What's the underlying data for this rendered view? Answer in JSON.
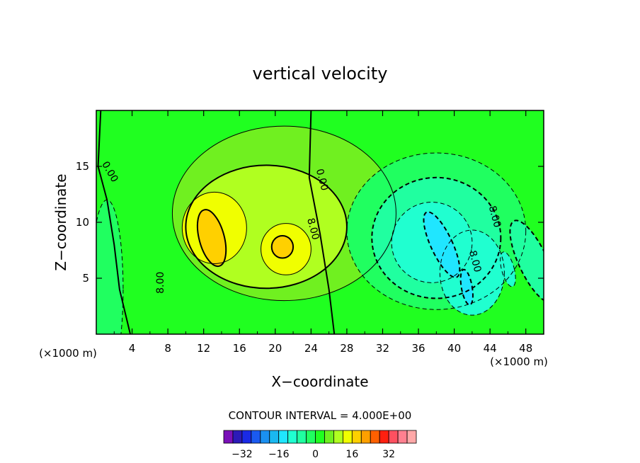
{
  "chart_data": {
    "type": "heatmap",
    "subtype": "filled contour",
    "title": "vertical velocity",
    "xlabel": "X−coordinate",
    "ylabel": "Z−coordinate",
    "x_unit_label": "(×1000 m)",
    "z_unit_label": "(×1000 m)",
    "xlim": [
      0,
      50
    ],
    "ylim": [
      0,
      20
    ],
    "x_ticks": [
      "4",
      "8",
      "12",
      "16",
      "20",
      "24",
      "28",
      "32",
      "36",
      "40",
      "44",
      "48"
    ],
    "x_tick_values": [
      4,
      8,
      12,
      16,
      20,
      24,
      28,
      32,
      36,
      40,
      44,
      48
    ],
    "y_ticks": [
      "5",
      "10",
      "15"
    ],
    "y_tick_values": [
      5,
      10,
      15
    ],
    "contour_interval_text": "CONTOUR INTERVAL = 4.000E+00",
    "contour_interval": 4,
    "contour_labels": [
      {
        "text": "0.00",
        "x": 1.5,
        "z": 14.5,
        "angle": 60
      },
      {
        "text": "0.00",
        "x": 25.2,
        "z": 13.8,
        "angle": 75
      },
      {
        "text": "8.00",
        "x": 24.2,
        "z": 9.4,
        "angle": 75
      },
      {
        "text": "8.00",
        "x": 7.2,
        "z": 4.6,
        "angle": -90
      },
      {
        "text": "8.00",
        "x": 44.5,
        "z": 10.5,
        "angle": 75
      },
      {
        "text": "8.00",
        "x": 42.3,
        "z": 6.5,
        "angle": 75
      }
    ],
    "features": [
      {
        "kind": "updraft",
        "x": 13,
        "z": 8.5,
        "max_value": 20
      },
      {
        "kind": "updraft",
        "x": 21.5,
        "z": 7.8,
        "max_value": 16
      },
      {
        "kind": "downdraft",
        "x": 38.5,
        "z": 8.0,
        "min_value": -18
      },
      {
        "kind": "downdraft",
        "x": 41.5,
        "z": 4.5,
        "min_value": -14
      }
    ],
    "colorbar": {
      "levels": [
        -36,
        -32,
        -28,
        -24,
        -20,
        -16,
        -12,
        -8,
        -4,
        0,
        4,
        8,
        12,
        16,
        20,
        24,
        28,
        32,
        36
      ],
      "tick_labels": [
        "−32",
        "−16",
        "0",
        "16",
        "32"
      ],
      "tick_values": [
        -32,
        -16,
        0,
        16,
        32
      ],
      "colors": [
        "#7a10b8",
        "#2c1ab8",
        "#1a2ae6",
        "#1a5af0",
        "#1a90f0",
        "#1ab8f0",
        "#20e6ff",
        "#20ffd0",
        "#20ffa0",
        "#20ff60",
        "#20ff20",
        "#70f020",
        "#b0ff20",
        "#f0ff00",
        "#ffd000",
        "#ffa000",
        "#ff6000",
        "#ff2010",
        "#ff5060",
        "#ff8090",
        "#ffa8a8"
      ]
    }
  }
}
